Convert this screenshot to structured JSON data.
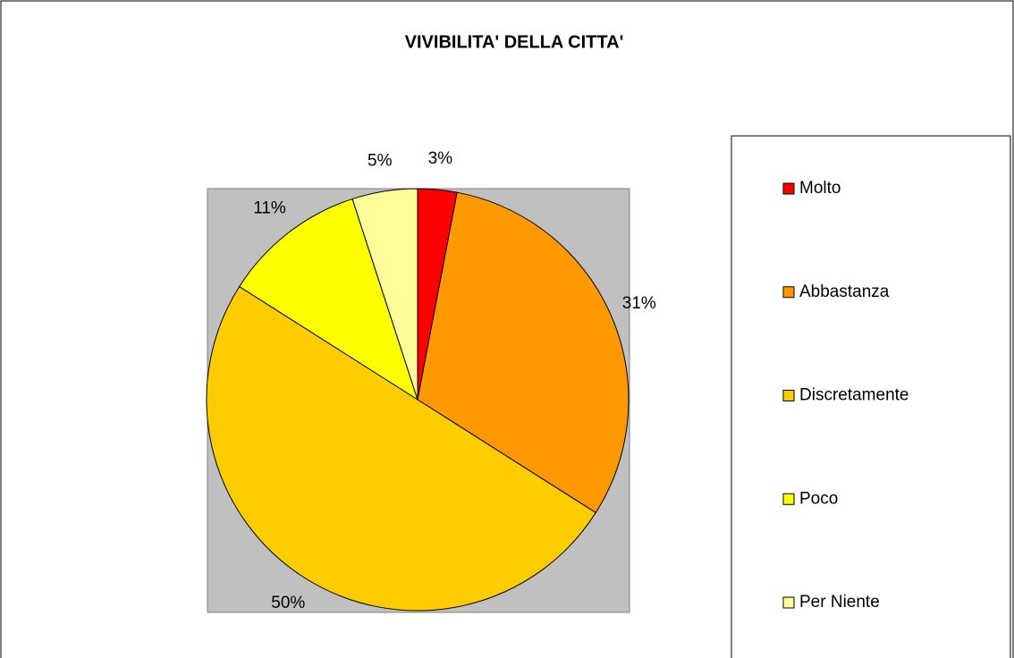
{
  "chart_data": {
    "type": "pie",
    "title": "VIVIBILITA' DELLA CITTA'",
    "categories": [
      "Molto",
      "Abbastanza",
      "Discretamente",
      "Poco",
      "Per Niente"
    ],
    "values": [
      3,
      31,
      50,
      11,
      5
    ],
    "value_labels": [
      "3%",
      "31%",
      "50%",
      "11%",
      "5%"
    ],
    "colors": [
      "#ff0000",
      "#ff9900",
      "#ffcc00",
      "#ffff00",
      "#ffff99"
    ],
    "legend": "right"
  }
}
